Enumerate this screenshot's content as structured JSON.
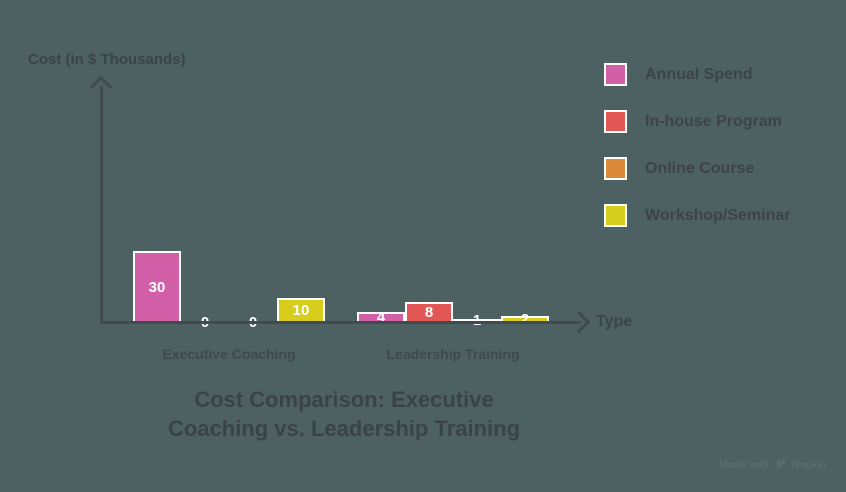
{
  "background_color": "#4d6163",
  "text_color": "#3b4447",
  "axis_color": "#414b4e",
  "chart_data": {
    "type": "bar",
    "title": "Cost Comparison: Executive Coaching vs. Leadership Training",
    "title_lines": [
      "Cost Comparison: Executive",
      "Coaching vs. Leadership Training"
    ],
    "ylabel": "Cost (in $ Thousands)",
    "xlabel": "Type",
    "categories": [
      "Executive Coaching",
      "Leadership Training"
    ],
    "series": [
      {
        "name": "Annual Spend",
        "color": "#d45fa9",
        "values": [
          30,
          4
        ]
      },
      {
        "name": "In-house Program",
        "color": "#e25755",
        "values": [
          0,
          8
        ]
      },
      {
        "name": "Online Course",
        "color": "#dc8a3a",
        "values": [
          0,
          1
        ]
      },
      {
        "name": "Workshop/Seminar",
        "color": "#d7cd1c",
        "values": [
          10,
          2
        ]
      }
    ],
    "bar_value_labels": true,
    "grid": false,
    "legend_position": "top-right",
    "ylim": [
      0,
      30
    ]
  },
  "footer": {
    "made_with": "Made with",
    "brand": "Napkin"
  }
}
